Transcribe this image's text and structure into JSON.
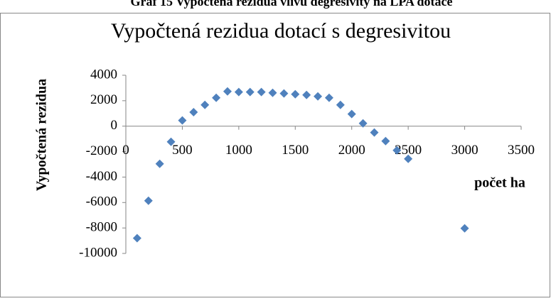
{
  "caption": "Graf 15 Vypočtená rezidua vlivu degresivity na LPA dotace",
  "chart_data": {
    "type": "scatter",
    "title": "Vypočtená rezidua dotací s degresivitou",
    "x_label": "počet ha",
    "y_label": "Vypočtená rezidua",
    "series": [
      {
        "color": "#4f81bd",
        "x": [
          100,
          200,
          300,
          400,
          500,
          600,
          700,
          800,
          900,
          1000,
          1100,
          1200,
          1300,
          1400,
          1500,
          1600,
          1700,
          1800,
          1900,
          2000,
          2100,
          2200,
          2300,
          2400,
          2500,
          3000
        ],
        "values": [
          -8800,
          -5860,
          -2960,
          -1230,
          450,
          1100,
          1670,
          2230,
          2730,
          2680,
          2680,
          2680,
          2620,
          2570,
          2510,
          2450,
          2340,
          2230,
          1670,
          950,
          220,
          -500,
          -1170,
          -1900,
          -2570,
          -8030
        ]
      }
    ],
    "xlim": [
      0,
      3500
    ],
    "xticks": [
      0,
      500,
      1000,
      1500,
      2000,
      2500,
      3000,
      3500
    ],
    "ylim": [
      -10000,
      4000
    ],
    "yticks": [
      -10000,
      -8000,
      -6000,
      -4000,
      -2000,
      0,
      2000,
      4000
    ],
    "grid": false
  }
}
